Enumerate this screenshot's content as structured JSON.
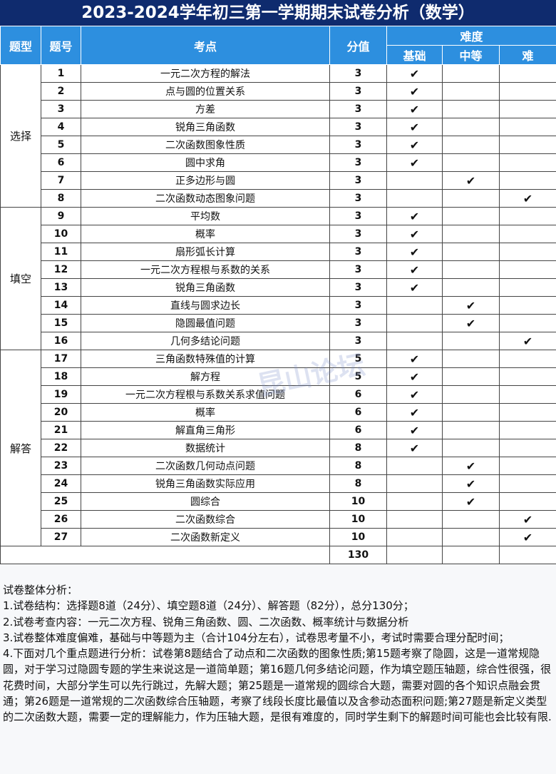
{
  "title": "2023-2024学年初三第一学期期末试卷分析（数学）",
  "headers": {
    "type": "题型",
    "num": "题号",
    "topic": "考点",
    "score": "分值",
    "difficulty": "难度",
    "basic": "基础",
    "mid": "中等",
    "hard": "难"
  },
  "check": "✔",
  "groups": [
    {
      "name": "选择",
      "start": 0,
      "count": 8
    },
    {
      "name": "填空",
      "start": 8,
      "count": 8
    },
    {
      "name": "解答",
      "start": 16,
      "count": 11
    }
  ],
  "rows": [
    {
      "num": "1",
      "topic": "一元二次方程的解法",
      "score": "3",
      "level": "basic"
    },
    {
      "num": "2",
      "topic": "点与圆的位置关系",
      "score": "3",
      "level": "basic"
    },
    {
      "num": "3",
      "topic": "方差",
      "score": "3",
      "level": "basic"
    },
    {
      "num": "4",
      "topic": "锐角三角函数",
      "score": "3",
      "level": "basic"
    },
    {
      "num": "5",
      "topic": "二次函数图象性质",
      "score": "3",
      "level": "basic"
    },
    {
      "num": "6",
      "topic": "圆中求角",
      "score": "3",
      "level": "basic"
    },
    {
      "num": "7",
      "topic": "正多边形与圆",
      "score": "3",
      "level": "mid"
    },
    {
      "num": "8",
      "topic": "二次函数动态图象问题",
      "score": "3",
      "level": "hard"
    },
    {
      "num": "9",
      "topic": "平均数",
      "score": "3",
      "level": "basic"
    },
    {
      "num": "10",
      "topic": "概率",
      "score": "3",
      "level": "basic"
    },
    {
      "num": "11",
      "topic": "扇形弧长计算",
      "score": "3",
      "level": "basic"
    },
    {
      "num": "12",
      "topic": "一元二次方程根与系数的关系",
      "score": "3",
      "level": "basic"
    },
    {
      "num": "13",
      "topic": "锐角三角函数",
      "score": "3",
      "level": "basic"
    },
    {
      "num": "14",
      "topic": "直线与圆求边长",
      "score": "3",
      "level": "mid"
    },
    {
      "num": "15",
      "topic": "隐圆最值问题",
      "score": "3",
      "level": "mid"
    },
    {
      "num": "16",
      "topic": "几何多结论问题",
      "score": "3",
      "level": "hard"
    },
    {
      "num": "17",
      "topic": "三角函数特殊值的计算",
      "score": "5",
      "level": "basic"
    },
    {
      "num": "18",
      "topic": "解方程",
      "score": "5",
      "level": "basic"
    },
    {
      "num": "19",
      "topic": "一元二次方程根与系数关系求值问题",
      "score": "6",
      "level": "basic"
    },
    {
      "num": "20",
      "topic": "概率",
      "score": "6",
      "level": "basic"
    },
    {
      "num": "21",
      "topic": "解直角三角形",
      "score": "6",
      "level": "basic"
    },
    {
      "num": "22",
      "topic": "数据统计",
      "score": "8",
      "level": "basic"
    },
    {
      "num": "23",
      "topic": "二次函数几何动点问题",
      "score": "8",
      "level": "mid"
    },
    {
      "num": "24",
      "topic": "锐角三角函数实际应用",
      "score": "8",
      "level": "mid"
    },
    {
      "num": "25",
      "topic": "圆综合",
      "score": "10",
      "level": "mid"
    },
    {
      "num": "26",
      "topic": "二次函数综合",
      "score": "10",
      "level": "hard"
    },
    {
      "num": "27",
      "topic": "二次函数新定义",
      "score": "10",
      "level": "hard"
    }
  ],
  "total": "130",
  "analysis": {
    "heading": "试卷整体分析：",
    "items": [
      "1.试卷结构：选择题8道（24分）、填空题8道（24分）、解答题（82分），总分130分；",
      "2.试卷考查内容：一元二次方程、锐角三角函数、圆、二次函数、概率统计与数据分析",
      "3.试卷整体难度偏难，基础与中等题为主（合计104分左右），试卷思考量不小，考试时需要合理分配时间；",
      "4.下面对几个重点题进行分析：试卷第8题结合了动点和二次函数的图象性质;第15题考察了隐圆，这是一道常规隐圆，对于学习过隐圆专题的学生来说这是一道简单题；第16题几何多结论问题，作为填空题压轴题，综合性很强，很花费时间，大部分学生可以先行跳过，先解大题；第25题是一道常规的圆综合大题，需要对圆的各个知识点融会贯通；第26题是一道常规的二次函数综合压轴题，考察了线段长度比最值以及含参动态面积问题;第27题是新定义类型的二次函数大题，需要一定的理解能力，作为压轴大题，是很有难度的，同时学生剩下的解题时间可能也会比较有限."
    ]
  },
  "watermark": "昆山论坛",
  "colors": {
    "title_bg": "#0f2b6e",
    "header_bg": "#2d8fdf"
  }
}
